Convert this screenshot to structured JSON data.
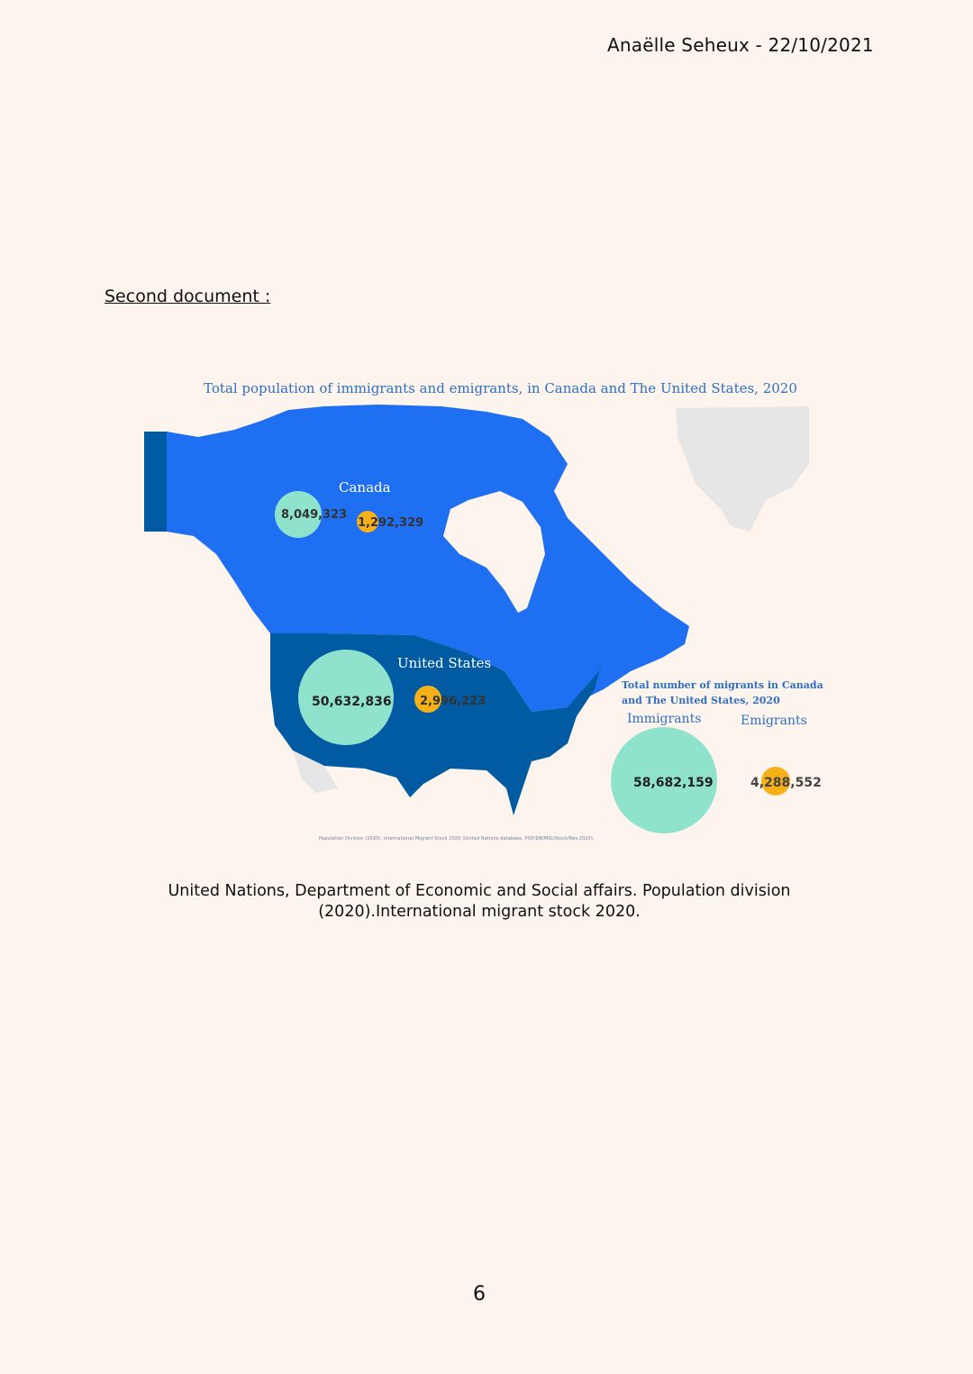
{
  "header": {
    "author_date": "Anaëlle Seheux - 22/10/2021"
  },
  "section": {
    "heading": "Second document :"
  },
  "map": {
    "title": "Total population of immigrants and emigrants, in Canada and The United States, 2020",
    "colors": {
      "canada": "#1f6ff2",
      "united_states": "#005ba3",
      "immigrants": "#8fe3cc",
      "emigrants": "#f8b019",
      "background_land": "#e6e6e6"
    },
    "regions": [
      {
        "name": "Canada",
        "immigrants": "8,049,323",
        "emigrants": "1,292,329"
      },
      {
        "name": "United States",
        "immigrants": "50,632,836",
        "emigrants": "2,996,223"
      }
    ],
    "legend": {
      "title": "Total number of migrants in Canada and The United States, 2020",
      "immigrants_label": "Immigrants",
      "emigrants_label": "Emigrants",
      "immigrants_total": "58,682,159",
      "emigrants_total": "4,288,552"
    },
    "source": "Population Division (2020). International Migrant Stock 2020 (United Nations database, POP/DB/MIG/Stock/Rev.2020)."
  },
  "caption": "United Nations, Department of Economic and Social affairs. Population division (2020).International migrant stock 2020.",
  "footer": {
    "page_number": "6"
  }
}
